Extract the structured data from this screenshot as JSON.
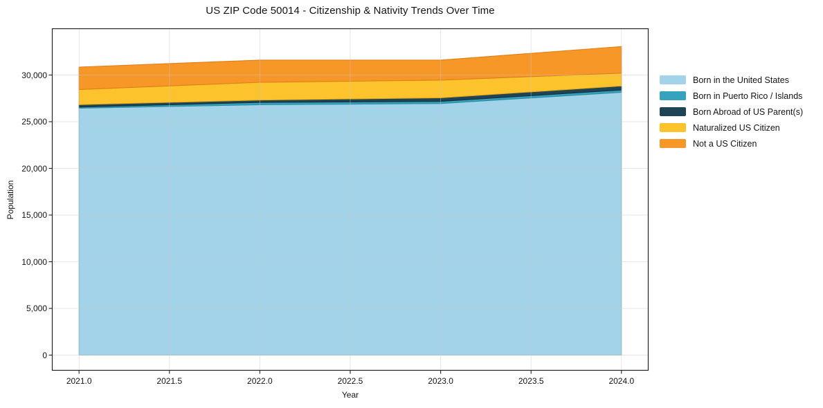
{
  "title": "US ZIP Code 50014 - Citizenship & Nativity Trends Over Time",
  "chart_data": {
    "type": "area",
    "stacked": true,
    "title": "US ZIP Code 50014 - Citizenship & Nativity Trends Over Time",
    "xlabel": "Year",
    "ylabel": "Population",
    "x": [
      2021,
      2022,
      2023,
      2024
    ],
    "series": [
      {
        "name": "Born in the United States",
        "color": "#a3d3e8",
        "edge": "#7eb9d6",
        "values": [
          26450,
          26820,
          26950,
          28150
        ]
      },
      {
        "name": "Born in Puerto Rico / Islands",
        "color": "#35a3bd",
        "edge": "#2c8ba2",
        "values": [
          120,
          250,
          230,
          250
        ]
      },
      {
        "name": "Born Abroad of US Parent(s)",
        "color": "#1e4456",
        "edge": "#152f3c",
        "values": [
          260,
          250,
          380,
          430
        ]
      },
      {
        "name": "Naturalized US Citizen",
        "color": "#fcc32d",
        "edge": "#e5a81a",
        "values": [
          1620,
          1900,
          1900,
          1370
        ]
      },
      {
        "name": "Not a US Citizen",
        "color": "#f79728",
        "edge": "#e07f15",
        "values": [
          2400,
          2380,
          2140,
          2850
        ]
      }
    ],
    "xlim": [
      2020.85,
      2024.15
    ],
    "ylim": [
      -1666,
      35000
    ],
    "x_tick_values": [
      2021.0,
      2021.5,
      2022.0,
      2022.5,
      2023.0,
      2023.5,
      2024.0
    ],
    "x_tick_labels": [
      "2021.0",
      "2021.5",
      "2022.0",
      "2022.5",
      "2023.0",
      "2023.5",
      "2024.0"
    ],
    "y_tick_values": [
      0,
      5000,
      10000,
      15000,
      20000,
      25000,
      30000
    ],
    "y_tick_labels": [
      "0",
      "5,000",
      "10,000",
      "15,000",
      "20,000",
      "25,000",
      "30,000"
    ],
    "grid": true,
    "grid_color": "#c8c8c8",
    "spine_color": "#222222",
    "legend_position": "outside-right"
  }
}
